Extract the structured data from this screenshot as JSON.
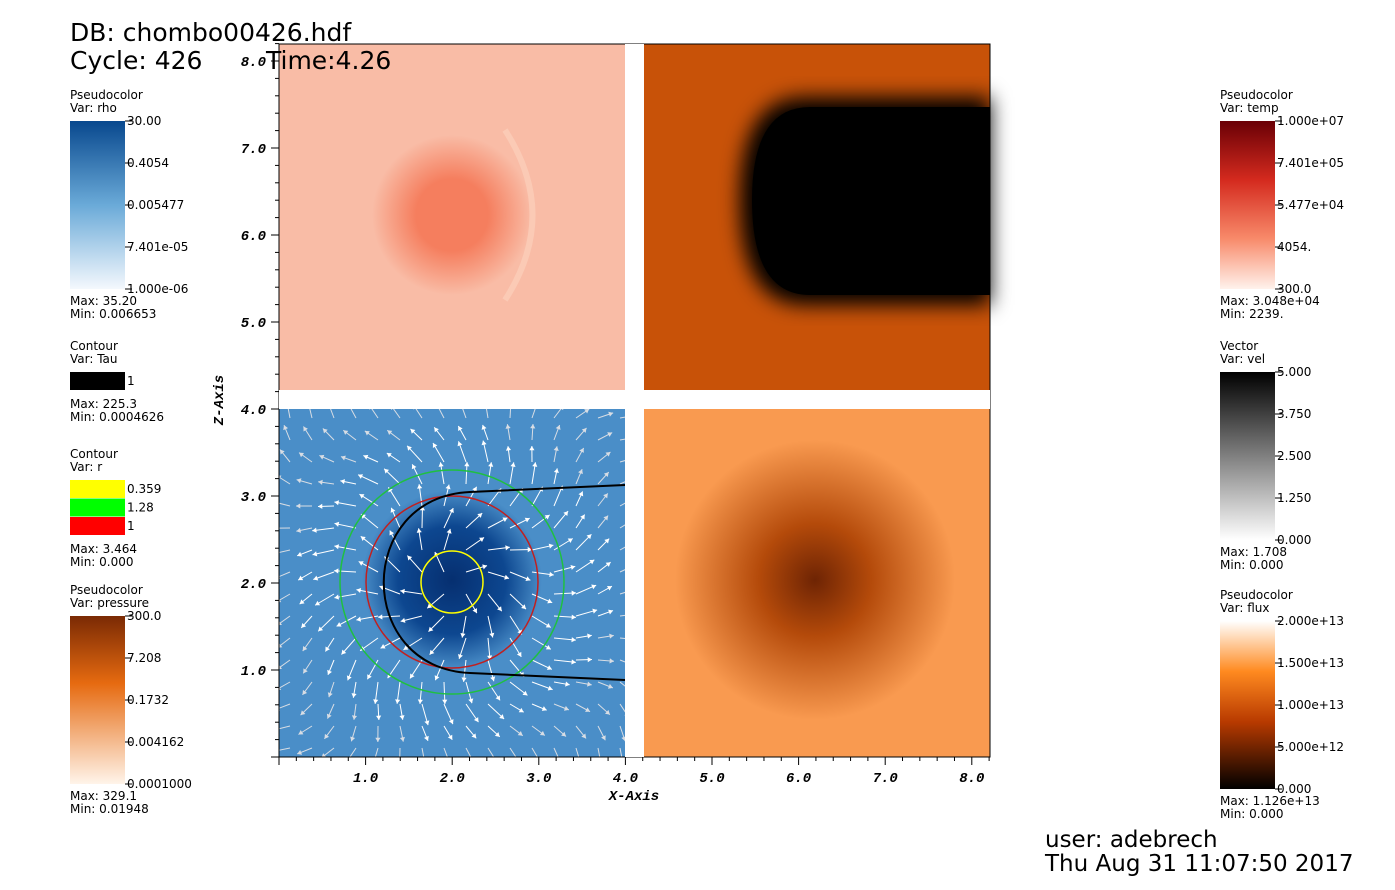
{
  "header": {
    "db": "DB: chombo00426.hdf",
    "cycle": "Cycle: 426",
    "time": "Time:4.26"
  },
  "legends": [
    {
      "kind": "Pseudocolor",
      "var": "Var: rho",
      "labels": [
        "30.00",
        "0.4054",
        "0.005477",
        "7.401e-05",
        "1.000e-06"
      ],
      "max": "Max:  35.20",
      "min": "Min:  0.006653"
    },
    {
      "kind": "Contour",
      "var": "Var: Tau",
      "labels": [
        "1"
      ],
      "max": "Max:  225.3",
      "min": "Min:  0.0004626"
    },
    {
      "kind": "Contour",
      "var": "Var: r",
      "labels": [
        "0.359",
        "1.28",
        "1"
      ],
      "max": "Max:  3.464",
      "min": "Min:  0.000"
    },
    {
      "kind": "Pseudocolor",
      "var": "Var: pressure",
      "labels": [
        "300.0",
        "7.208",
        "0.1732",
        "0.004162",
        "0.0001000"
      ],
      "max": "Max:  329.1",
      "min": "Min:  0.01948"
    },
    {
      "kind": "Pseudocolor",
      "var": "Var: temp",
      "labels": [
        "1.000e+07",
        "7.401e+05",
        "5.477e+04",
        "4054.",
        "300.0"
      ],
      "max": "Max:  3.048e+04",
      "min": "Min:  2239."
    },
    {
      "kind": "Vector",
      "var": "Var: vel",
      "labels": [
        "5.000",
        "3.750",
        "2.500",
        "1.250",
        "0.000"
      ],
      "max": "Max:  1.708",
      "min": "Min:  0.000"
    },
    {
      "kind": "Pseudocolor",
      "var": "Var: flux",
      "labels": [
        "2.000e+13",
        "1.500e+13",
        "1.000e+13",
        "5.000e+12",
        "0.000"
      ],
      "max": "Max:  1.126e+13",
      "min": "Min:  0.000"
    }
  ],
  "axes": {
    "x_title": "X-Axis",
    "y_title": "Z-Axis",
    "x_ticks": [
      "1.0",
      "2.0",
      "3.0",
      "4.0",
      "5.0",
      "6.0",
      "7.0",
      "8.0"
    ],
    "y_ticks": [
      "1.0",
      "2.0",
      "3.0",
      "4.0",
      "5.0",
      "6.0",
      "7.0",
      "8.0"
    ]
  },
  "footer": {
    "user": "user: adebrech",
    "date": "Thu Aug 31 11:07:50 2017"
  }
}
